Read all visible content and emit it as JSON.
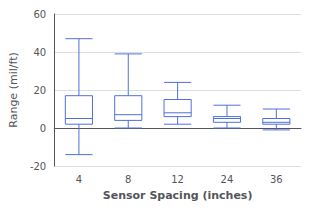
{
  "chart_data": {
    "type": "boxplot",
    "xlabel": "Sensor Spacing (inches)",
    "ylabel": "Range (mil/ft)",
    "categories": [
      "4",
      "8",
      "12",
      "24",
      "36"
    ],
    "values": [
      [
        -14,
        2,
        5,
        17,
        47
      ],
      [
        0,
        4,
        7,
        17,
        39
      ],
      [
        2,
        6,
        8,
        15,
        24
      ],
      [
        0,
        3,
        5,
        6,
        12
      ],
      [
        -1,
        2,
        3,
        5,
        10
      ]
    ],
    "ylim": [
      -20,
      60
    ],
    "yticks": [
      -20,
      0,
      20,
      40,
      60
    ],
    "grid": true
  }
}
